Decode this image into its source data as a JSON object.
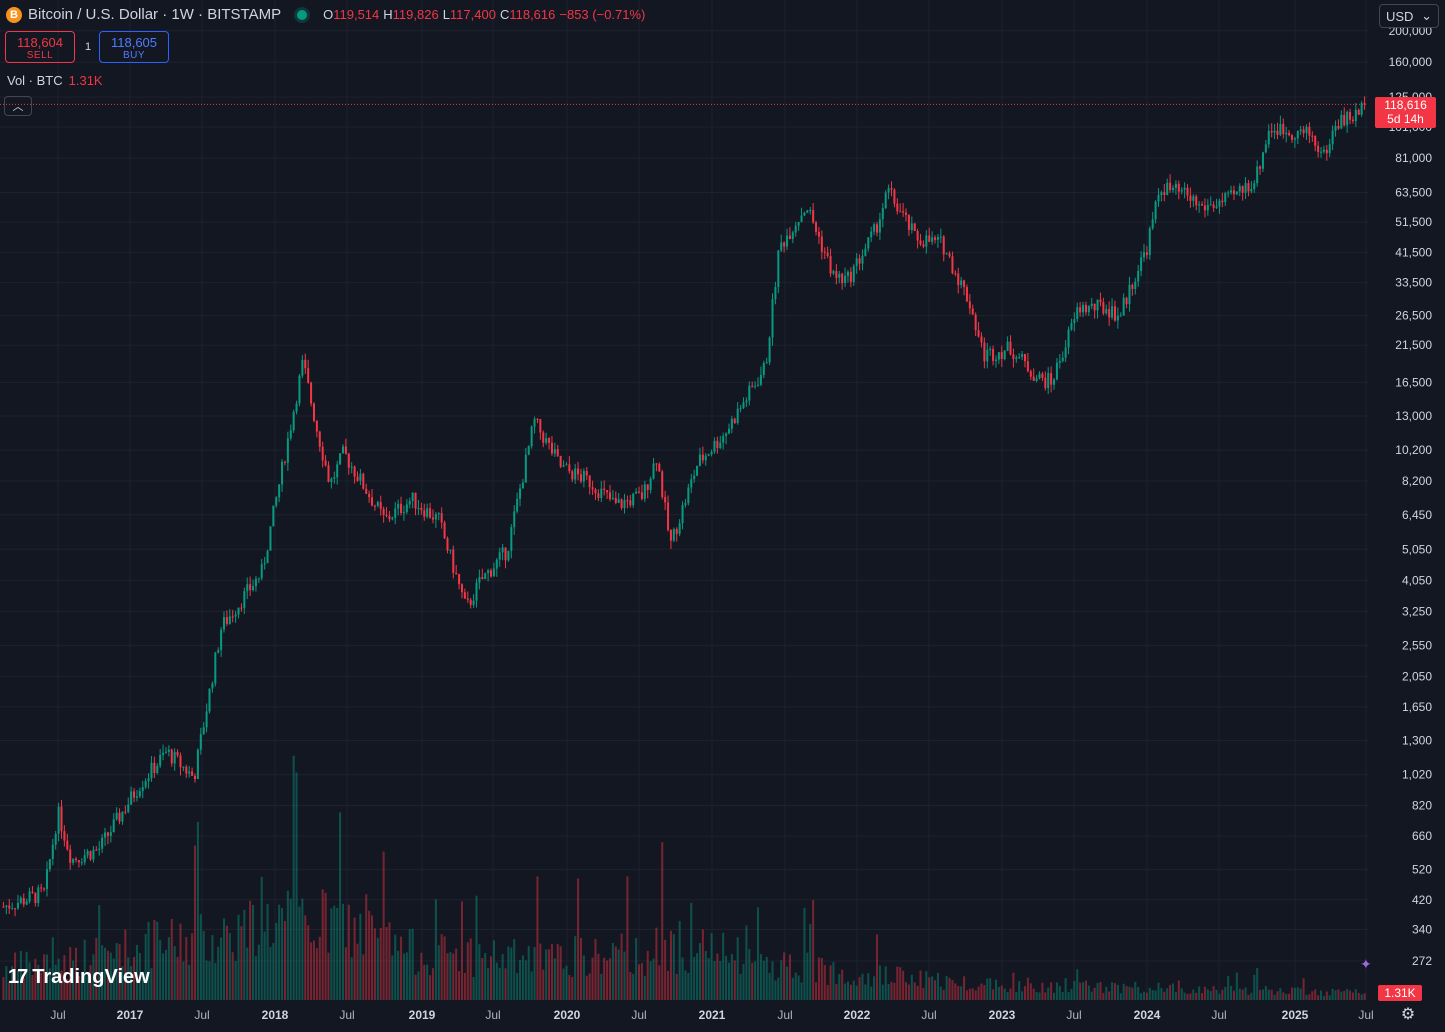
{
  "header": {
    "coin_icon": "B",
    "title": "Bitcoin / U.S. Dollar · 1W · BITSTAMP",
    "market_status_color": "#089981",
    "ohlc": [
      {
        "key": "O",
        "value": "119,514"
      },
      {
        "key": "H",
        "value": "119,826"
      },
      {
        "key": "L",
        "value": "117,400"
      },
      {
        "key": "C",
        "value": "118,616"
      },
      {
        "key": "",
        "value": "−853 (−0.71%)"
      }
    ]
  },
  "trade": {
    "sell_price": "118,604",
    "sell_label": "SELL",
    "spread": "1",
    "buy_price": "118,605",
    "buy_label": "BUY"
  },
  "volume_legend": {
    "label": "Vol · BTC",
    "value": "1.31K"
  },
  "currency": {
    "label": "USD",
    "icon": "chevron-down-icon"
  },
  "price_tag": {
    "price": "118,616",
    "countdown": "5d 14h"
  },
  "volume_tag": "1.31K",
  "watermark": {
    "logo": "17",
    "text": "TradingView"
  },
  "colors": {
    "up": "#089981",
    "down": "#f23645",
    "background": "#131722",
    "grid": "#1e222d"
  },
  "chart_data": {
    "type": "candlestick",
    "scale": "log",
    "y_ticks": [
      "200,000",
      "160,000",
      "125,000",
      "101,000",
      "81,000",
      "63,500",
      "51,500",
      "41,500",
      "33,500",
      "26,500",
      "21,500",
      "16,500",
      "13,000",
      "10,200",
      "8,200",
      "6,450",
      "5,050",
      "4,050",
      "3,250",
      "2,550",
      "2,050",
      "1,650",
      "1,300",
      "1,020",
      "820",
      "660",
      "520",
      "420",
      "340",
      "272"
    ],
    "x_ticks": [
      "Jul",
      "2017",
      "Jul",
      "2018",
      "Jul",
      "2019",
      "Jul",
      "2020",
      "Jul",
      "2021",
      "Jul",
      "2022",
      "Jul",
      "2023",
      "Jul",
      "2024",
      "Jul",
      "2025",
      "Jul"
    ],
    "last_price": 118616,
    "path": [
      [
        0,
        400
      ],
      [
        0.03,
        440
      ],
      [
        0.04,
        780
      ],
      [
        0.05,
        560
      ],
      [
        0.07,
        600
      ],
      [
        0.1,
        950
      ],
      [
        0.12,
        1200
      ],
      [
        0.14,
        1000
      ],
      [
        0.16,
        2900
      ],
      [
        0.19,
        4300
      ],
      [
        0.22,
        19000
      ],
      [
        0.23,
        12000
      ],
      [
        0.24,
        8000
      ],
      [
        0.25,
        10000
      ],
      [
        0.28,
        6200
      ],
      [
        0.3,
        7200
      ],
      [
        0.32,
        6200
      ],
      [
        0.34,
        3300
      ],
      [
        0.35,
        4000
      ],
      [
        0.37,
        5000
      ],
      [
        0.39,
        12500
      ],
      [
        0.41,
        9000
      ],
      [
        0.43,
        8200
      ],
      [
        0.45,
        6900
      ],
      [
        0.47,
        7400
      ],
      [
        0.48,
        9800
      ],
      [
        0.49,
        5200
      ],
      [
        0.51,
        9300
      ],
      [
        0.53,
        11500
      ],
      [
        0.56,
        18500
      ],
      [
        0.57,
        43000
      ],
      [
        0.59,
        58000
      ],
      [
        0.61,
        35000
      ],
      [
        0.62,
        34000
      ],
      [
        0.64,
        48000
      ],
      [
        0.65,
        64000
      ],
      [
        0.67,
        46000
      ],
      [
        0.69,
        44000
      ],
      [
        0.71,
        29000
      ],
      [
        0.72,
        20000
      ],
      [
        0.74,
        21000
      ],
      [
        0.76,
        17000
      ],
      [
        0.77,
        16500
      ],
      [
        0.79,
        28000
      ],
      [
        0.81,
        28000
      ],
      [
        0.82,
        26500
      ],
      [
        0.83,
        34000
      ],
      [
        0.84,
        43000
      ],
      [
        0.85,
        66000
      ],
      [
        0.87,
        62000
      ],
      [
        0.88,
        57000
      ],
      [
        0.9,
        60000
      ],
      [
        0.92,
        70000
      ],
      [
        0.93,
        100000
      ],
      [
        0.96,
        96000
      ],
      [
        0.97,
        82000
      ],
      [
        0.98,
        105000
      ],
      [
        0.995,
        110000
      ],
      [
        1,
        118616
      ]
    ],
    "volume_path": [
      [
        0,
        0.35
      ],
      [
        0.05,
        0.45
      ],
      [
        0.1,
        0.6
      ],
      [
        0.15,
        0.7
      ],
      [
        0.2,
        0.9
      ],
      [
        0.25,
        0.85
      ],
      [
        0.3,
        0.55
      ],
      [
        0.35,
        0.5
      ],
      [
        0.4,
        0.45
      ],
      [
        0.45,
        0.5
      ],
      [
        0.5,
        0.6
      ],
      [
        0.55,
        0.45
      ],
      [
        0.6,
        0.35
      ],
      [
        0.7,
        0.2
      ],
      [
        0.8,
        0.15
      ],
      [
        0.9,
        0.12
      ],
      [
        1,
        0.08
      ]
    ]
  }
}
